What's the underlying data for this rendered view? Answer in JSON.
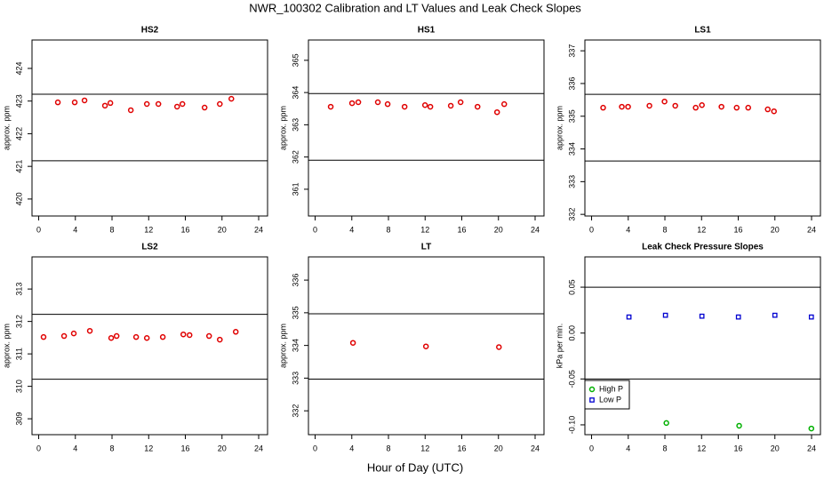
{
  "title": "NWR_100302  Calibration and LT Values and Leak Check Slopes",
  "xlabel": "Hour of Day (UTC)",
  "chart_data": [
    {
      "type": "scatter",
      "title": "HS2",
      "ylabel": "approx. ppm",
      "xlim": [
        -0.73,
        24.97
      ],
      "xticks": [
        0,
        4,
        8,
        12,
        16,
        20,
        24
      ],
      "ylim": [
        419.48,
        424.87
      ],
      "yticks": [
        420,
        421,
        422,
        423,
        424
      ],
      "hlines": [
        423.21,
        421.17
      ],
      "color": "#e00000",
      "marker": "circle",
      "x": [
        2.09,
        3.93,
        5.0,
        7.23,
        7.82,
        10.05,
        11.8,
        13.06,
        15.1,
        15.68,
        18.1,
        19.76,
        21.02
      ],
      "values": [
        422.96,
        422.96,
        423.02,
        422.86,
        422.94,
        422.72,
        422.91,
        422.91,
        422.83,
        422.91,
        422.8,
        422.91,
        423.07
      ]
    },
    {
      "type": "scatter",
      "title": "HS1",
      "ylabel": "approx. ppm",
      "xlim": [
        -0.73,
        24.97
      ],
      "xticks": [
        0,
        4,
        8,
        12,
        16,
        20,
        24
      ],
      "ylim": [
        360.17,
        365.63
      ],
      "yticks": [
        361,
        362,
        363,
        364,
        365
      ],
      "hlines": [
        363.97,
        361.9
      ],
      "color": "#e00000",
      "marker": "circle",
      "x": [
        1.7,
        4.03,
        4.71,
        6.84,
        7.91,
        9.76,
        11.99,
        12.57,
        14.8,
        15.87,
        17.72,
        19.85,
        20.63
      ],
      "values": [
        363.56,
        363.67,
        363.7,
        363.7,
        363.64,
        363.56,
        363.61,
        363.56,
        363.59,
        363.7,
        363.56,
        363.39,
        363.64
      ]
    },
    {
      "type": "scatter",
      "title": "LS1",
      "ylabel": "approx. ppm",
      "xlim": [
        -0.73,
        24.97
      ],
      "xticks": [
        0,
        4,
        8,
        12,
        16,
        20,
        24
      ],
      "ylim": [
        331.95,
        337.33
      ],
      "yticks": [
        332,
        333,
        334,
        335,
        336,
        337
      ],
      "hlines": [
        335.67,
        333.63
      ],
      "color": "#e00000",
      "marker": "circle",
      "x": [
        1.26,
        3.3,
        3.98,
        6.31,
        7.96,
        9.13,
        11.36,
        12.04,
        14.17,
        15.83,
        17.09,
        19.22,
        19.9
      ],
      "values": [
        335.26,
        335.29,
        335.29,
        335.32,
        335.45,
        335.32,
        335.26,
        335.34,
        335.29,
        335.26,
        335.26,
        335.21,
        335.15
      ]
    },
    {
      "type": "scatter",
      "title": "LS2",
      "ylabel": "approx. ppm",
      "xlim": [
        -0.73,
        24.97
      ],
      "xticks": [
        0,
        4,
        8,
        12,
        16,
        20,
        24
      ],
      "ylim": [
        308.51,
        313.99
      ],
      "yticks": [
        309,
        310,
        311,
        312,
        313
      ],
      "hlines": [
        312.22,
        310.22
      ],
      "color": "#e00000",
      "marker": "circle",
      "x": [
        0.53,
        2.77,
        3.83,
        5.58,
        7.91,
        8.5,
        10.63,
        11.8,
        13.54,
        15.78,
        16.46,
        18.59,
        19.76,
        21.5
      ],
      "values": [
        311.52,
        311.55,
        311.63,
        311.71,
        311.49,
        311.55,
        311.52,
        311.49,
        311.52,
        311.6,
        311.58,
        311.55,
        311.44,
        311.68
      ]
    },
    {
      "type": "scatter",
      "title": "LT",
      "ylabel": "approx. ppm",
      "xlim": [
        -0.73,
        24.97
      ],
      "xticks": [
        0,
        4,
        8,
        12,
        16,
        20,
        24
      ],
      "ylim": [
        331.27,
        336.71
      ],
      "yticks": [
        332,
        333,
        334,
        335,
        336
      ],
      "hlines": [
        334.97,
        332.97
      ],
      "color": "#e00000",
      "marker": "circle",
      "x": [
        4.13,
        12.09,
        20.05
      ],
      "values": [
        334.08,
        333.97,
        333.95
      ]
    },
    {
      "type": "scatter",
      "title": "Leak Check Pressure Slopes",
      "ylabel": "kPa per min.",
      "xlim": [
        -0.73,
        24.97
      ],
      "xticks": [
        0,
        4,
        8,
        12,
        16,
        20,
        24
      ],
      "ylim": [
        -0.1107,
        0.083
      ],
      "yticks": [
        {
          "value": -0.1,
          "label": "-0.10"
        },
        -0.05,
        {
          "value": 0,
          "label": "0.00"
        },
        0.05
      ],
      "hlines": [
        0.05,
        -0.05
      ],
      "legend": "bottomleft",
      "series": [
        {
          "name": "High P",
          "color": "#00b000",
          "marker": "circle",
          "x": [
            8.16,
            16.1,
            23.98
          ],
          "values": [
            -0.098,
            -0.101,
            -0.104
          ]
        },
        {
          "name": "Low P",
          "color": "#0000d0",
          "marker": "square",
          "x": [
            4.08,
            8.06,
            12.04,
            16.02,
            20.0,
            23.98
          ],
          "values": [
            0.0175,
            0.0194,
            0.0184,
            0.0175,
            0.0194,
            0.0175
          ]
        }
      ]
    }
  ]
}
